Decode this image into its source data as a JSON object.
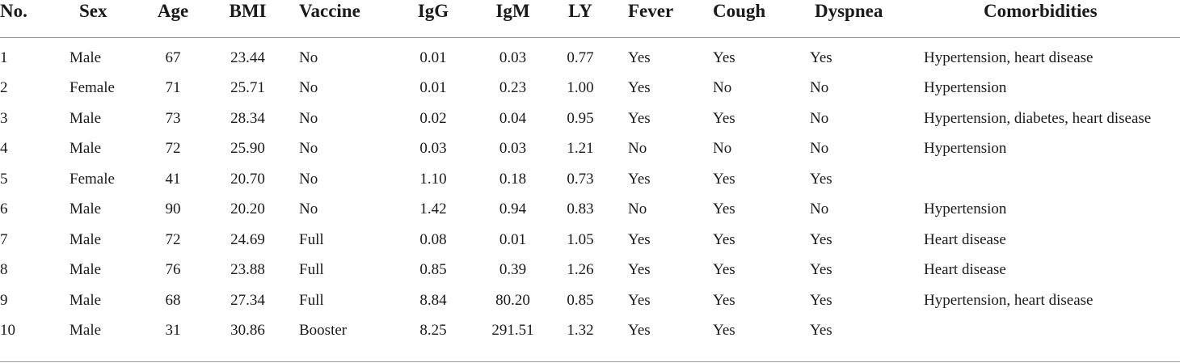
{
  "table": {
    "headers": [
      "No.",
      "Sex",
      "Age",
      "BMI",
      "Vaccine",
      "IgG",
      "IgM",
      "LY",
      "Fever",
      "Cough",
      "Dyspnea",
      "Comorbidities"
    ],
    "rows": [
      [
        "1",
        "Male",
        "67",
        "23.44",
        "No",
        "0.01",
        "0.03",
        "0.77",
        "Yes",
        "Yes",
        "Yes",
        "Hypertension, heart disease"
      ],
      [
        "2",
        "Female",
        "71",
        "25.71",
        "No",
        "0.01",
        "0.23",
        "1.00",
        "Yes",
        "No",
        "No",
        "Hypertension"
      ],
      [
        "3",
        "Male",
        "73",
        "28.34",
        "No",
        "0.02",
        "0.04",
        "0.95",
        "Yes",
        "Yes",
        "No",
        "Hypertension, diabetes, heart disease"
      ],
      [
        "4",
        "Male",
        "72",
        "25.90",
        "No",
        "0.03",
        "0.03",
        "1.21",
        "No",
        "No",
        "No",
        "Hypertension"
      ],
      [
        "5",
        "Female",
        "41",
        "20.70",
        "No",
        "1.10",
        "0.18",
        "0.73",
        "Yes",
        "Yes",
        "Yes",
        ""
      ],
      [
        "6",
        "Male",
        "90",
        "20.20",
        "No",
        "1.42",
        "0.94",
        "0.83",
        "No",
        "Yes",
        "No",
        "Hypertension"
      ],
      [
        "7",
        "Male",
        "72",
        "24.69",
        "Full",
        "0.08",
        "0.01",
        "1.05",
        "Yes",
        "Yes",
        "Yes",
        "Heart disease"
      ],
      [
        "8",
        "Male",
        "76",
        "23.88",
        "Full",
        "0.85",
        "0.39",
        "1.26",
        "Yes",
        "Yes",
        "Yes",
        "Heart disease"
      ],
      [
        "9",
        "Male",
        "68",
        "27.34",
        "Full",
        "8.84",
        "80.20",
        "0.85",
        "Yes",
        "Yes",
        "Yes",
        "Hypertension, heart disease"
      ],
      [
        "10",
        "Male",
        "31",
        "30.86",
        "Booster",
        "8.25",
        "291.51",
        "1.32",
        "Yes",
        "Yes",
        "Yes",
        ""
      ]
    ]
  }
}
